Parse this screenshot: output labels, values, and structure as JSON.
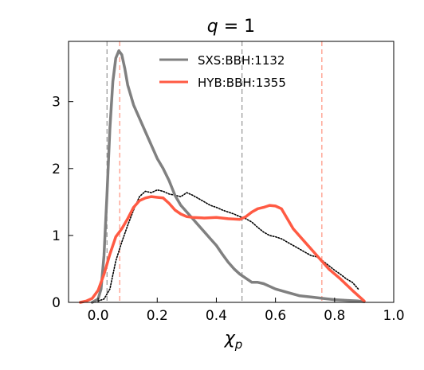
{
  "chart_data": {
    "type": "line",
    "title": "q = 1",
    "title_parts": {
      "var": "q",
      "rest": " = 1"
    },
    "xlabel": "χp",
    "xlabel_parts": {
      "main": "χ",
      "sub": "p"
    },
    "ylabel": "",
    "xlim": [
      -0.1,
      1.0
    ],
    "ylim": [
      0,
      3.9
    ],
    "xticks": [
      0.0,
      0.2,
      0.4,
      0.6,
      0.8,
      1.0
    ],
    "xtick_labels": [
      "0.0",
      "0.2",
      "0.4",
      "0.6",
      "0.8",
      "1.0"
    ],
    "yticks": [
      0,
      1,
      2,
      3
    ],
    "ytick_labels": [
      "0",
      "1",
      "2",
      "3"
    ],
    "grid": false,
    "legend_position": "top-center",
    "series": [
      {
        "name": "SXS:BBH:1132",
        "color": "#808080",
        "style": "solid",
        "x": [
          -0.02,
          0.0,
          0.01,
          0.02,
          0.03,
          0.04,
          0.05,
          0.06,
          0.07,
          0.08,
          0.09,
          0.1,
          0.12,
          0.14,
          0.16,
          0.18,
          0.2,
          0.22,
          0.24,
          0.26,
          0.28,
          0.3,
          0.32,
          0.34,
          0.36,
          0.38,
          0.4,
          0.42,
          0.44,
          0.46,
          0.48,
          0.5,
          0.52,
          0.54,
          0.56,
          0.58,
          0.6,
          0.64,
          0.68,
          0.72,
          0.76,
          0.8,
          0.84,
          0.88,
          0.9
        ],
        "y": [
          0.0,
          0.05,
          0.2,
          0.7,
          1.6,
          2.6,
          3.3,
          3.65,
          3.76,
          3.7,
          3.5,
          3.25,
          2.95,
          2.75,
          2.55,
          2.35,
          2.15,
          2.0,
          1.82,
          1.6,
          1.45,
          1.35,
          1.25,
          1.15,
          1.05,
          0.95,
          0.85,
          0.72,
          0.6,
          0.5,
          0.42,
          0.36,
          0.3,
          0.3,
          0.28,
          0.24,
          0.2,
          0.15,
          0.1,
          0.08,
          0.06,
          0.04,
          0.03,
          0.02,
          0.01
        ]
      },
      {
        "name": "HYB:BBH:1355",
        "color": "#ff5a43",
        "style": "solid",
        "x": [
          -0.06,
          -0.04,
          -0.02,
          0.0,
          0.02,
          0.04,
          0.06,
          0.08,
          0.1,
          0.12,
          0.14,
          0.16,
          0.18,
          0.2,
          0.22,
          0.24,
          0.26,
          0.28,
          0.3,
          0.32,
          0.36,
          0.4,
          0.44,
          0.48,
          0.5,
          0.52,
          0.54,
          0.56,
          0.58,
          0.6,
          0.62,
          0.64,
          0.66,
          0.7,
          0.74,
          0.78,
          0.82,
          0.86,
          0.9
        ],
        "y": [
          0.0,
          0.02,
          0.06,
          0.18,
          0.42,
          0.72,
          0.98,
          1.1,
          1.25,
          1.42,
          1.52,
          1.56,
          1.58,
          1.57,
          1.56,
          1.48,
          1.38,
          1.32,
          1.28,
          1.27,
          1.26,
          1.27,
          1.25,
          1.24,
          1.28,
          1.35,
          1.4,
          1.42,
          1.45,
          1.44,
          1.4,
          1.25,
          1.1,
          0.9,
          0.7,
          0.5,
          0.35,
          0.18,
          0.02
        ]
      },
      {
        "name": "",
        "color": "#000000",
        "style": "dotted",
        "x": [
          0.0,
          0.02,
          0.04,
          0.06,
          0.08,
          0.1,
          0.12,
          0.14,
          0.16,
          0.18,
          0.2,
          0.22,
          0.24,
          0.26,
          0.28,
          0.3,
          0.32,
          0.34,
          0.36,
          0.38,
          0.4,
          0.42,
          0.44,
          0.46,
          0.48,
          0.5,
          0.52,
          0.54,
          0.56,
          0.58,
          0.6,
          0.62,
          0.64,
          0.66,
          0.68,
          0.7,
          0.72,
          0.74,
          0.76,
          0.78,
          0.8,
          0.82,
          0.84,
          0.86,
          0.88
        ],
        "y": [
          0.02,
          0.05,
          0.2,
          0.62,
          0.9,
          1.15,
          1.38,
          1.58,
          1.66,
          1.64,
          1.68,
          1.66,
          1.62,
          1.6,
          1.58,
          1.64,
          1.6,
          1.55,
          1.5,
          1.45,
          1.42,
          1.38,
          1.35,
          1.32,
          1.28,
          1.25,
          1.2,
          1.12,
          1.05,
          1.0,
          0.98,
          0.95,
          0.9,
          0.85,
          0.8,
          0.75,
          0.7,
          0.68,
          0.62,
          0.55,
          0.48,
          0.42,
          0.35,
          0.3,
          0.2
        ]
      }
    ],
    "vlines": [
      {
        "x": 0.03,
        "color": "#808080",
        "style": "dashed"
      },
      {
        "x": 0.073,
        "color": "#ff7b63",
        "style": "dashed"
      },
      {
        "x": 0.487,
        "color": "#808080",
        "style": "dashed"
      },
      {
        "x": 0.757,
        "color": "#ff7b63",
        "style": "dashed"
      }
    ]
  }
}
